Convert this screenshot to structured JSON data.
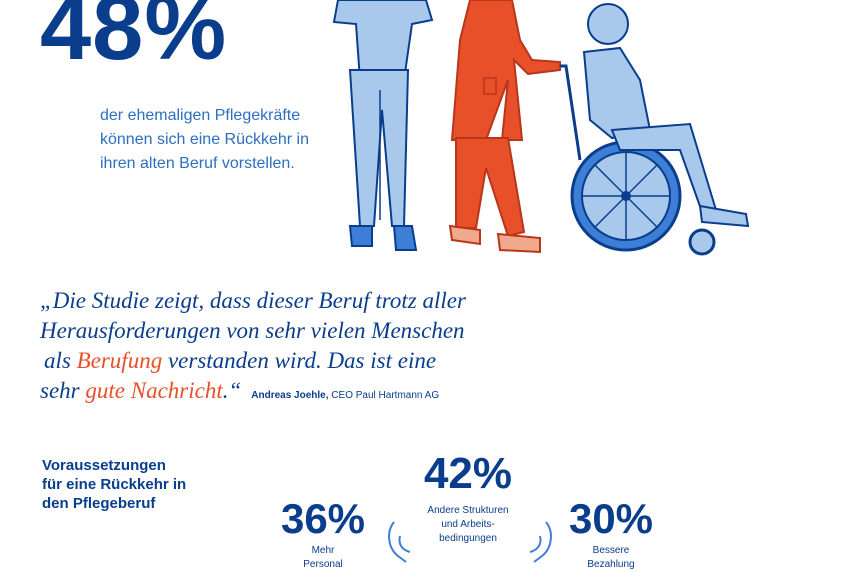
{
  "headline": {
    "percent": "48%",
    "description_lines": [
      "der ehemaligen Pflegekräfte",
      "können sich eine Rückkehr in",
      "ihren alten Beruf vorstellen."
    ]
  },
  "quote": {
    "line1": "„Die Studie zeigt, dass dieser Beruf trotz aller",
    "line2": "Herausforderungen von sehr vielen Menschen",
    "line3_pre": "als ",
    "line3_accent": "Berufung",
    "line3_post": " verstanden wird. Das ist eine",
    "line4_pre": "sehr ",
    "line4_accent": "gute Nachricht",
    "line4_post": ".“",
    "author_name": "Andreas Joehle,",
    "author_role": " CEO Paul Hartmann AG"
  },
  "requirements": {
    "heading_lines": [
      "Voraussetzungen",
      "für eine Rückkehr in",
      "den Pflegeberuf"
    ],
    "items": [
      {
        "percent": "42%",
        "label_lines": [
          "Andere Strukturen",
          "und Arbeits-",
          "bedingungen"
        ]
      },
      {
        "percent": "36%",
        "label_lines": [
          "Mehr",
          "Personal"
        ]
      },
      {
        "percent": "30%",
        "label_lines": [
          "Bessere",
          "Bezahlung"
        ]
      }
    ]
  },
  "colors": {
    "navy": "#0a3d8c",
    "blue": "#2d6fc0",
    "accent": "#e8502a",
    "light_blue": "#a9c9ec",
    "mid_blue": "#3d7fd6"
  }
}
